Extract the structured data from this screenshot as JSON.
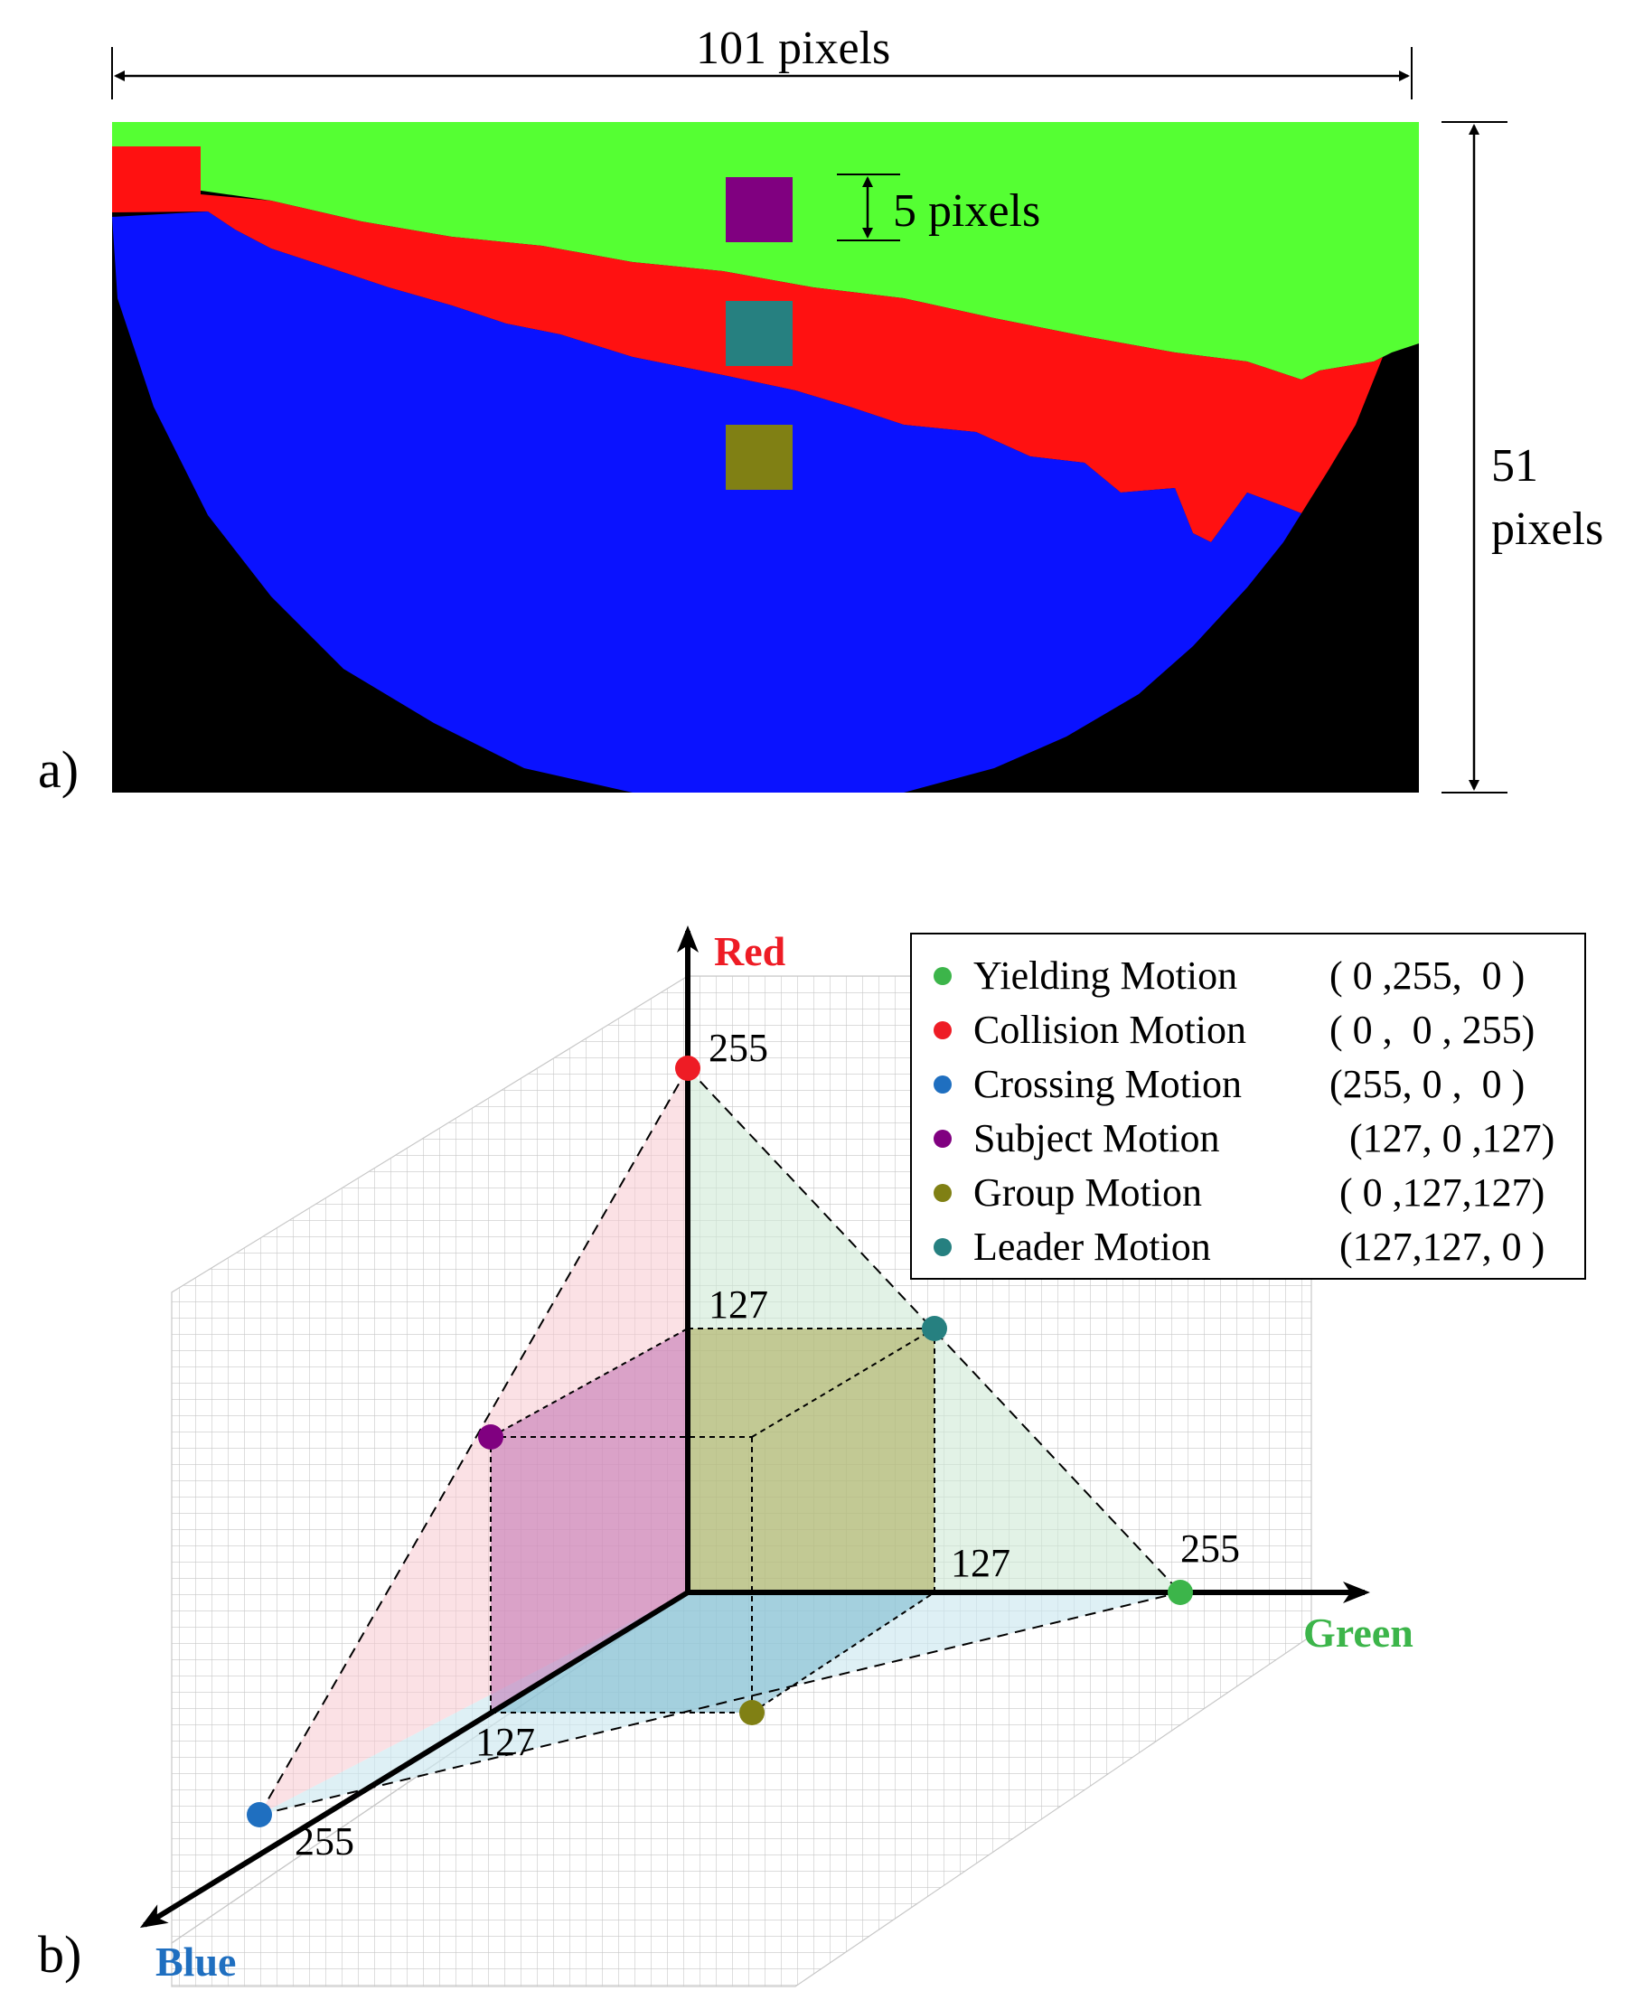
{
  "panel_a": {
    "label": "a)",
    "width_text": "101 pixels",
    "height_text_line1": "51",
    "height_text_line2": "pixels",
    "square_text": "5 pixels",
    "colors": {
      "green": "#55ff33",
      "red": "#ff1111",
      "blue": "#0a12ff",
      "black": "#000000",
      "purple": "#800080",
      "teal": "#268080",
      "olive": "#808014"
    }
  },
  "panel_b": {
    "label": "b)",
    "axes": {
      "red": "Red",
      "green": "Green",
      "blue": "Blue"
    },
    "ticks": {
      "red_255": "255",
      "red_127": "127",
      "green_255": "255",
      "green_127": "127",
      "blue_255": "255",
      "blue_127": "127"
    },
    "axis_colors": {
      "red": "#ee1c25",
      "green": "#3cb54a",
      "blue": "#1f6fc0"
    },
    "legend": [
      {
        "name": "Yielding Motion",
        "code": "( 0 ,255,  0 )",
        "color": "#3cb54a"
      },
      {
        "name": "Collision Motion",
        "code": "( 0 ,  0 , 255)",
        "color": "#ee1c25"
      },
      {
        "name": "Crossing Motion",
        "code": "(255, 0 ,  0 )",
        "color": "#1f6fc0"
      },
      {
        "name": "Subject Motion",
        "code": "  (127, 0 ,127)",
        "color": "#800080"
      },
      {
        "name": "Group Motion",
        "code": " ( 0 ,127,127)",
        "color": "#808014"
      },
      {
        "name": "Leader Motion",
        "code": " (127,127, 0 )",
        "color": "#268080"
      }
    ]
  }
}
